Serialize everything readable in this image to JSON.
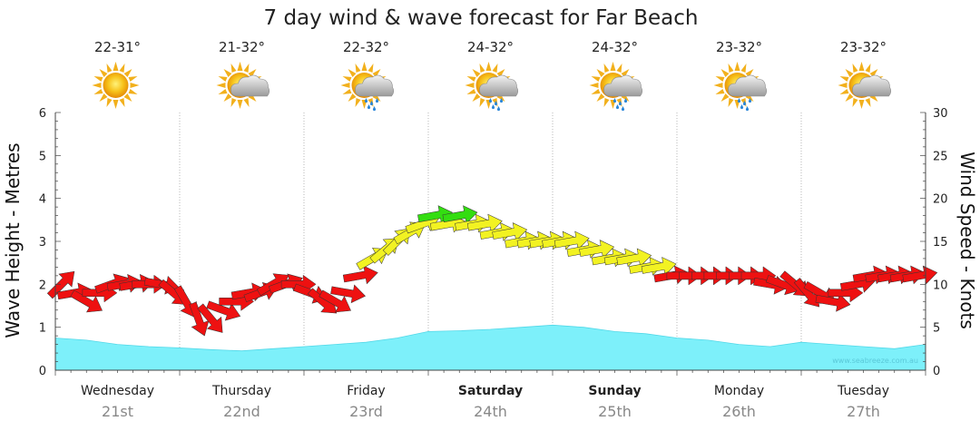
{
  "chart_data": {
    "type": "line",
    "title": "7 day wind & wave forecast for Far Beach",
    "y_left": {
      "label": "Wave Height - Metres",
      "range": [
        0,
        6
      ],
      "ticks": [
        "0",
        "1",
        "2",
        "3",
        "4",
        "5",
        "6"
      ]
    },
    "y_right": {
      "label": "Wind Speed - Knots",
      "range": [
        0,
        30
      ],
      "ticks": [
        "0",
        "5",
        "10",
        "15",
        "20",
        "25",
        "30"
      ]
    },
    "credit": "www.seabreeze.com.au",
    "days": [
      {
        "name": "Wednesday",
        "date": "21st",
        "temp": "22-31°",
        "icon": "sunny-icon",
        "bold": false
      },
      {
        "name": "Thursday",
        "date": "22nd",
        "temp": "21-32°",
        "icon": "partly-cloudy-icon",
        "bold": false
      },
      {
        "name": "Friday",
        "date": "23rd",
        "temp": "22-32°",
        "icon": "showers-icon",
        "bold": false
      },
      {
        "name": "Saturday",
        "date": "24th",
        "temp": "24-32°",
        "icon": "showers-icon",
        "bold": true
      },
      {
        "name": "Sunday",
        "date": "25th",
        "temp": "24-32°",
        "icon": "showers-icon",
        "bold": true
      },
      {
        "name": "Monday",
        "date": "26th",
        "temp": "23-32°",
        "icon": "showers-icon",
        "bold": false
      },
      {
        "name": "Tuesday",
        "date": "27th",
        "temp": "23-32°",
        "icon": "partly-cloudy-icon",
        "bold": false
      }
    ],
    "wave_series": {
      "name": "Wave Height",
      "unit": "m",
      "color": "#7df0fa",
      "x_days": [
        0,
        0.25,
        0.5,
        0.75,
        1,
        1.25,
        1.5,
        1.75,
        2,
        2.25,
        2.5,
        2.75,
        3,
        3.25,
        3.5,
        3.75,
        4,
        4.25,
        4.5,
        4.75,
        5,
        5.25,
        5.5,
        5.75,
        6,
        6.25,
        6.5,
        6.75,
        7
      ],
      "values": [
        0.75,
        0.7,
        0.6,
        0.55,
        0.52,
        0.48,
        0.45,
        0.5,
        0.55,
        0.6,
        0.65,
        0.75,
        0.9,
        0.92,
        0.95,
        1.0,
        1.05,
        1.0,
        0.9,
        0.85,
        0.75,
        0.7,
        0.6,
        0.55,
        0.65,
        0.6,
        0.55,
        0.5,
        0.6
      ]
    },
    "wind_series": {
      "name": "Wind Speed",
      "unit": "knots",
      "color_scale": {
        "green_below": 0,
        "yellow_min": 12,
        "red_below": 12,
        "green_min": 18
      },
      "x_days": [
        0,
        0.1,
        0.2,
        0.3,
        0.4,
        0.5,
        0.6,
        0.7,
        0.8,
        0.9,
        1.0,
        1.1,
        1.2,
        1.3,
        1.4,
        1.5,
        1.6,
        1.7,
        1.8,
        1.9,
        2.0,
        2.1,
        2.2,
        2.3,
        2.4,
        2.5,
        2.6,
        2.7,
        2.8,
        2.9,
        3.0,
        3.1,
        3.2,
        3.3,
        3.4,
        3.5,
        3.6,
        3.7,
        3.8,
        3.9,
        4.0,
        4.1,
        4.2,
        4.3,
        4.4,
        4.5,
        4.6,
        4.7,
        4.8,
        4.9,
        5.0,
        5.1,
        5.2,
        5.3,
        5.4,
        5.5,
        5.6,
        5.7,
        5.8,
        5.9,
        6.0,
        6.1,
        6.2,
        6.3,
        6.4,
        6.5,
        6.6,
        6.7,
        6.8,
        6.9
      ],
      "values": [
        10,
        9,
        8,
        9,
        10,
        10,
        10,
        10,
        10,
        9,
        8,
        6,
        6,
        7,
        8,
        9,
        9,
        10,
        10,
        10,
        9,
        8,
        8,
        9,
        11,
        13,
        14,
        15,
        16,
        17,
        18,
        17,
        18,
        17,
        17,
        16,
        16,
        15,
        15,
        15,
        15,
        15,
        14,
        14,
        13,
        13,
        13,
        12,
        12,
        11,
        11,
        11,
        11,
        11,
        11,
        11,
        11,
        10,
        10,
        10,
        9,
        9,
        8,
        9,
        10,
        11,
        11,
        11,
        11,
        11
      ],
      "directions_deg": [
        45,
        80,
        120,
        90,
        70,
        80,
        80,
        90,
        100,
        130,
        150,
        160,
        140,
        110,
        90,
        80,
        70,
        60,
        70,
        90,
        110,
        130,
        120,
        100,
        80,
        60,
        50,
        45,
        60,
        70,
        80,
        80,
        80,
        80,
        80,
        80,
        80,
        80,
        80,
        80,
        80,
        80,
        80,
        80,
        80,
        80,
        80,
        80,
        80,
        80,
        90,
        90,
        90,
        90,
        90,
        90,
        90,
        100,
        110,
        130,
        140,
        120,
        100,
        90,
        80,
        80,
        80,
        80,
        80,
        80
      ]
    }
  }
}
